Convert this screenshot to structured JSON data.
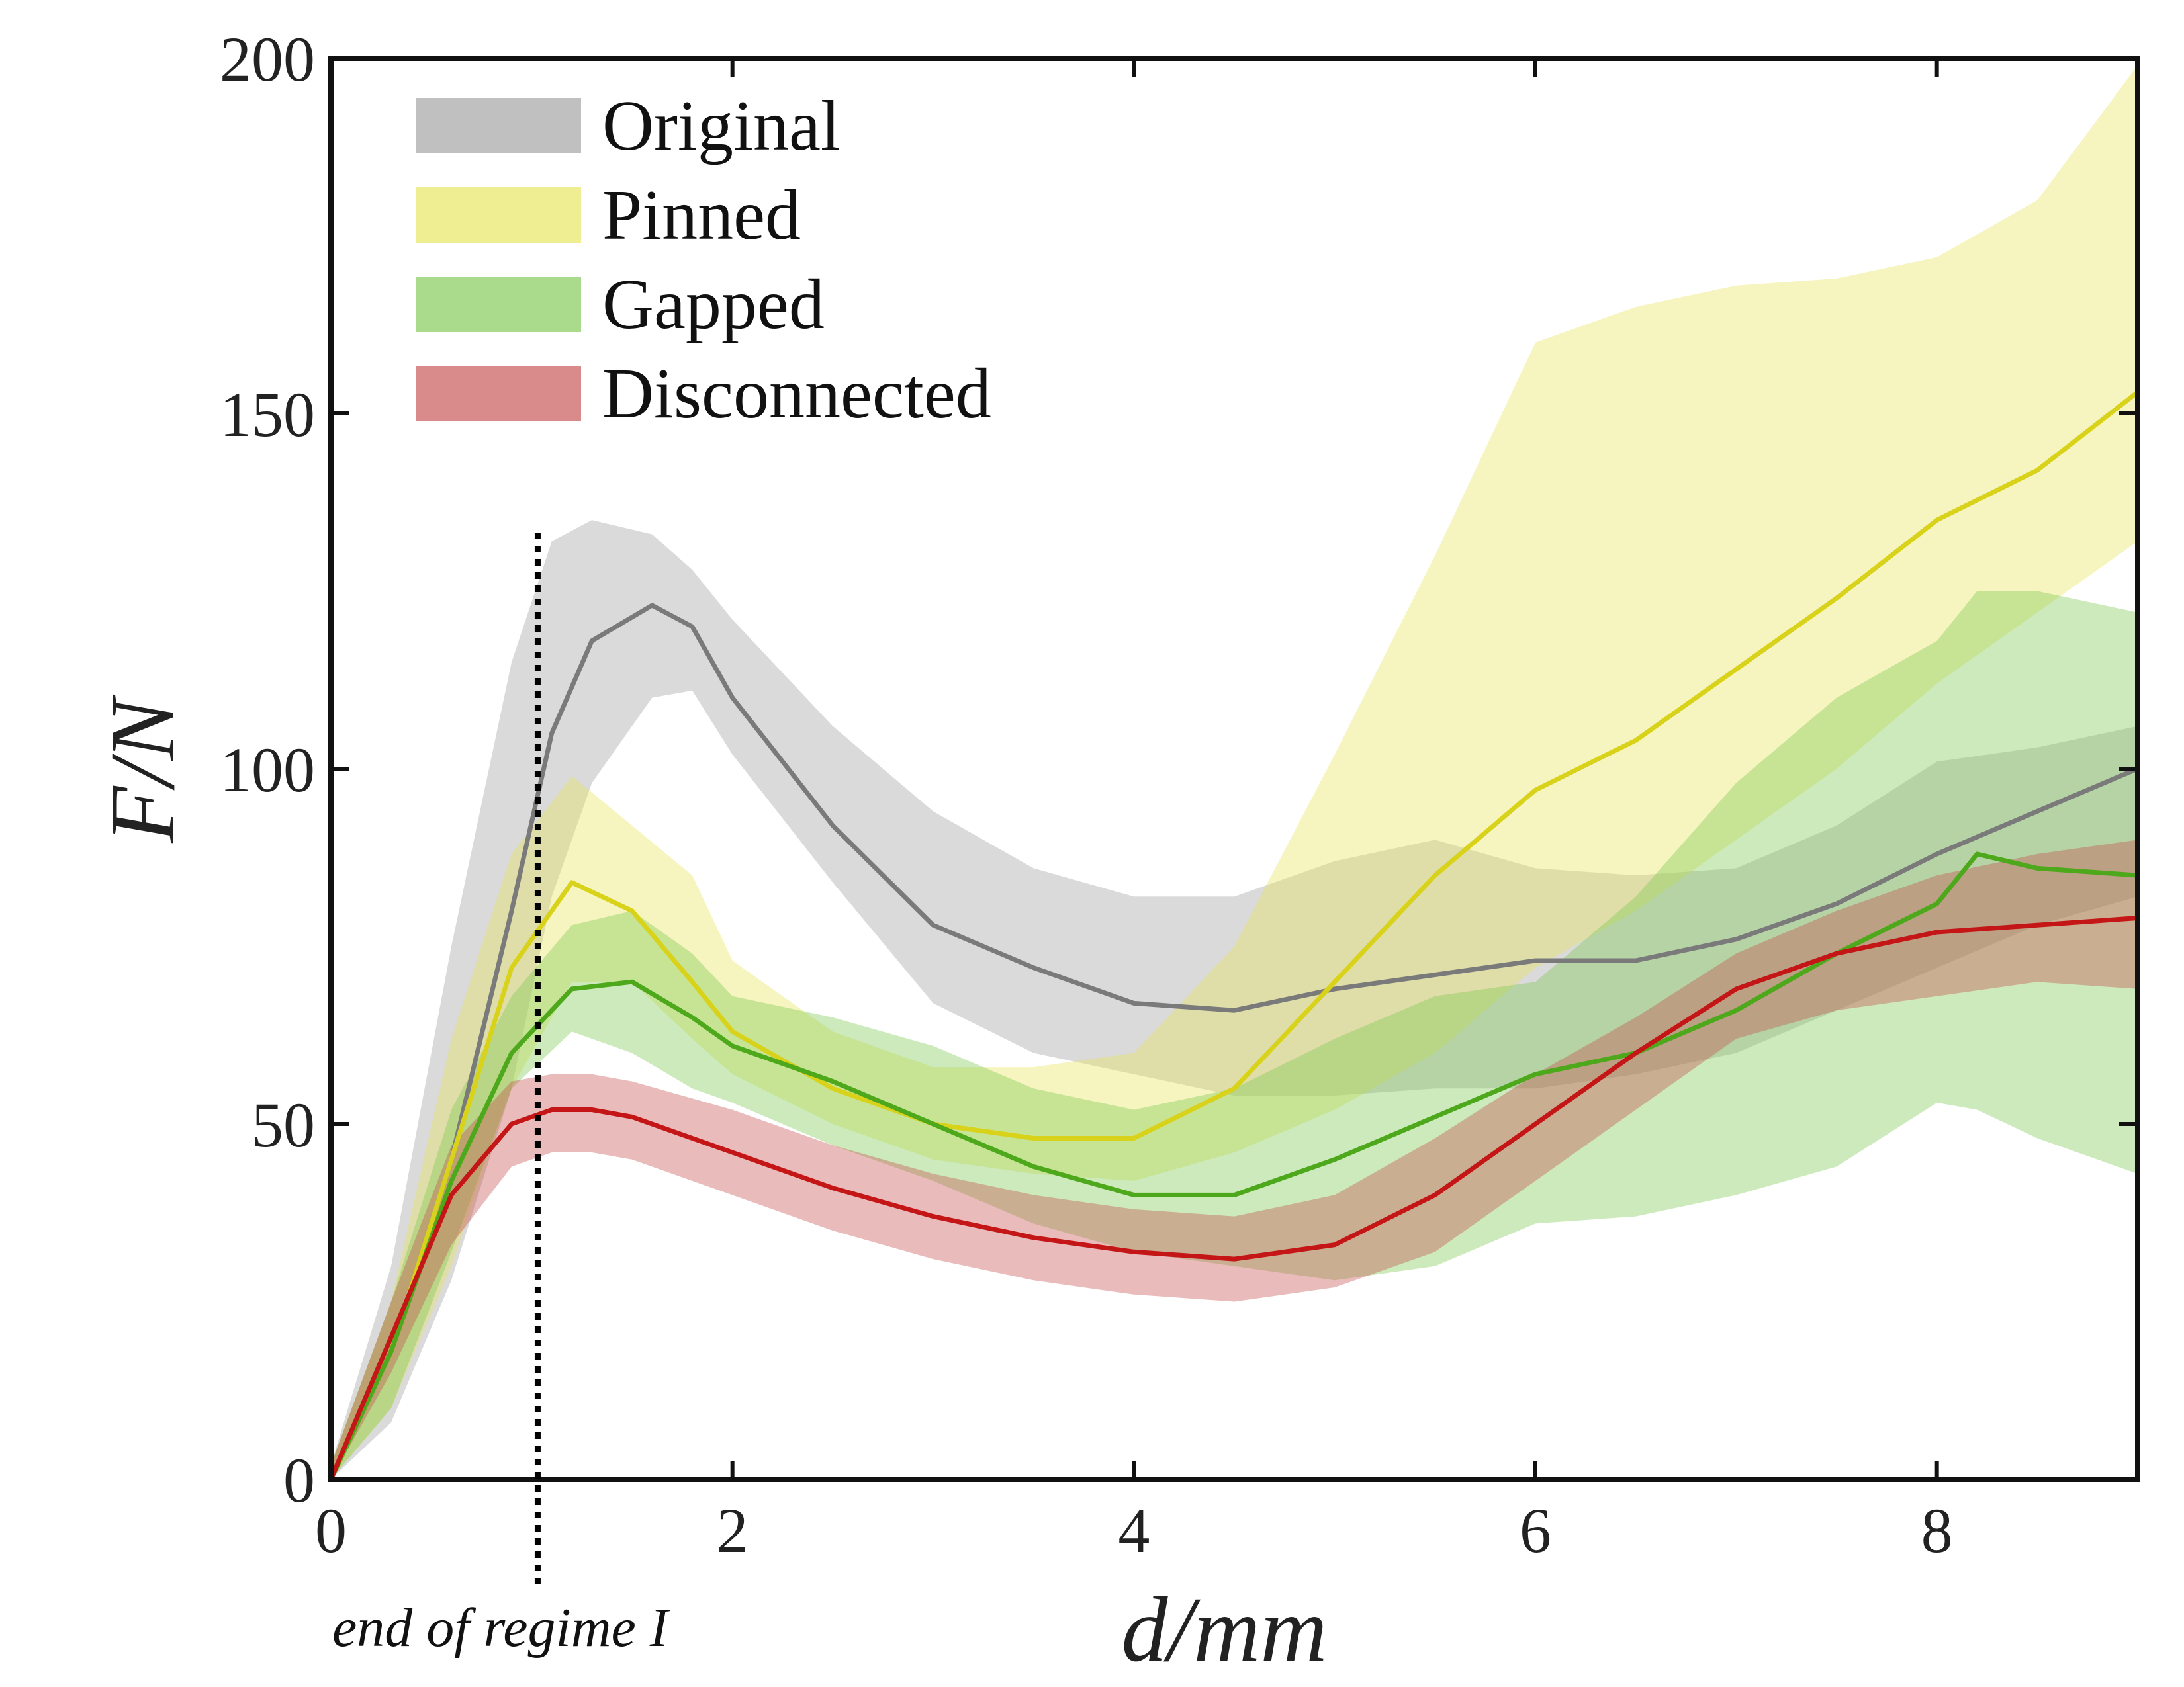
{
  "chart_data": {
    "type": "line",
    "title": "",
    "xlabel": "d/mm",
    "ylabel": "F/N",
    "xlim": [
      0,
      9
    ],
    "ylim": [
      0,
      200
    ],
    "x_ticks": [
      0,
      2,
      4,
      6,
      8
    ],
    "y_ticks": [
      0,
      50,
      100,
      150,
      200
    ],
    "legend_position": "top-left",
    "grid": false,
    "annotation": {
      "text": "end of regime I",
      "x": 1.03
    },
    "series": [
      {
        "name": "Original",
        "line_color": "#7a7a7a",
        "band_color": "#9e9e9e",
        "x": [
          0,
          0.3,
          0.6,
          0.9,
          1.1,
          1.3,
          1.6,
          1.8,
          2.0,
          2.5,
          3.0,
          3.5,
          4.0,
          4.5,
          5.0,
          5.5,
          6.0,
          6.5,
          7.0,
          7.5,
          8.0,
          8.5,
          9.0
        ],
        "mean": [
          0,
          18,
          45,
          80,
          105,
          118,
          123,
          120,
          110,
          92,
          78,
          72,
          67,
          66,
          69,
          71,
          73,
          73,
          76,
          81,
          88,
          94,
          100
        ],
        "upper": [
          2,
          30,
          75,
          115,
          132,
          135,
          133,
          128,
          121,
          106,
          94,
          86,
          82,
          82,
          87,
          90,
          86,
          85,
          86,
          92,
          101,
          103,
          106
        ],
        "lower": [
          0,
          8,
          28,
          55,
          82,
          98,
          110,
          111,
          102,
          84,
          67,
          60,
          57,
          54,
          54,
          55,
          55,
          57,
          60,
          66,
          72,
          78,
          82
        ]
      },
      {
        "name": "Pinned",
        "line_color": "#d9d21a",
        "band_color": "#e8e558",
        "x": [
          0,
          0.3,
          0.6,
          0.9,
          1.2,
          1.5,
          1.8,
          2.0,
          2.5,
          3.0,
          3.5,
          4.0,
          4.5,
          5.0,
          5.5,
          6.0,
          6.5,
          7.0,
          7.5,
          8.0,
          8.5,
          9.0
        ],
        "mean": [
          0,
          18,
          45,
          72,
          84,
          80,
          70,
          63,
          55,
          50,
          48,
          48,
          55,
          70,
          85,
          97,
          104,
          114,
          124,
          135,
          142,
          153
        ],
        "upper": [
          2,
          25,
          62,
          88,
          99,
          92,
          85,
          73,
          63,
          58,
          58,
          60,
          75,
          102,
          130,
          160,
          165,
          168,
          169,
          172,
          180,
          199
        ],
        "lower": [
          0,
          10,
          30,
          55,
          70,
          70,
          62,
          57,
          50,
          45,
          43,
          42,
          46,
          52,
          60,
          72,
          80,
          90,
          100,
          112,
          122,
          132
        ]
      },
      {
        "name": "Gapped",
        "line_color": "#4da81c",
        "band_color": "#7cc850",
        "x": [
          0,
          0.3,
          0.6,
          0.9,
          1.2,
          1.5,
          1.8,
          2.0,
          2.5,
          3.0,
          3.5,
          4.0,
          4.5,
          5.0,
          5.5,
          6.0,
          6.5,
          7.0,
          7.5,
          8.0,
          8.2,
          8.5,
          9.0
        ],
        "mean": [
          0,
          18,
          42,
          60,
          69,
          70,
          65,
          61,
          56,
          50,
          44,
          40,
          40,
          45,
          51,
          57,
          60,
          66,
          74,
          81,
          88,
          86,
          85
        ],
        "upper": [
          2,
          25,
          52,
          68,
          78,
          80,
          74,
          68,
          65,
          61,
          55,
          52,
          55,
          62,
          68,
          70,
          82,
          98,
          110,
          118,
          125,
          125,
          122
        ],
        "lower": [
          0,
          10,
          32,
          55,
          63,
          60,
          55,
          53,
          47,
          42,
          36,
          32,
          30,
          28,
          30,
          36,
          37,
          40,
          44,
          53,
          52,
          48,
          43
        ]
      },
      {
        "name": "Disconnected",
        "line_color": "#c41616",
        "band_color": "#c44c4c",
        "x": [
          0,
          0.3,
          0.6,
          0.9,
          1.1,
          1.3,
          1.5,
          2.0,
          2.5,
          3.0,
          3.5,
          4.0,
          4.5,
          5.0,
          5.5,
          6.0,
          6.5,
          7.0,
          7.5,
          8.0,
          8.5,
          9.0
        ],
        "mean": [
          0,
          20,
          40,
          50,
          52,
          52,
          51,
          46,
          41,
          37,
          34,
          32,
          31,
          33,
          40,
          50,
          60,
          69,
          74,
          77,
          78,
          79
        ],
        "upper": [
          2,
          25,
          47,
          56,
          57,
          57,
          56,
          52,
          47,
          43,
          40,
          38,
          37,
          40,
          48,
          57,
          65,
          74,
          80,
          85,
          88,
          90
        ],
        "lower": [
          0,
          15,
          33,
          44,
          46,
          46,
          45,
          40,
          35,
          31,
          28,
          26,
          25,
          27,
          32,
          42,
          52,
          62,
          66,
          68,
          70,
          69
        ]
      }
    ]
  }
}
